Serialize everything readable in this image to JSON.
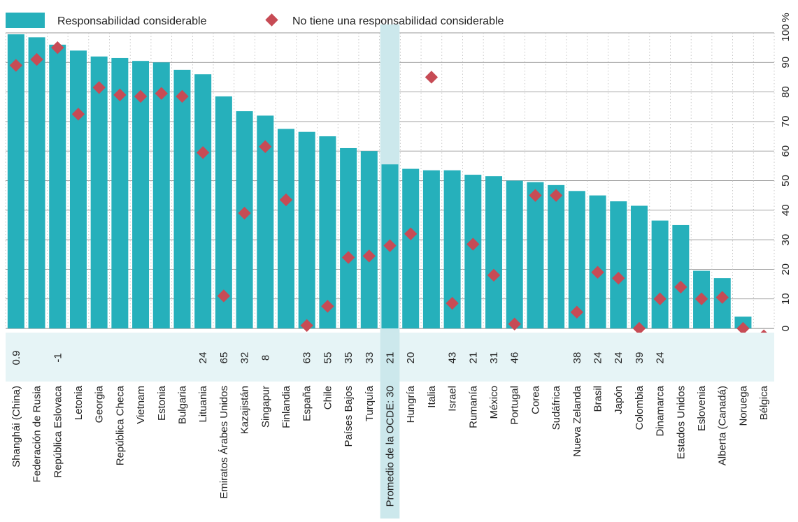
{
  "chart_data": {
    "type": "bar",
    "title": "",
    "xlabel": "",
    "ylabel": "",
    "ylim": [
      0,
      100
    ],
    "yticks": [
      0,
      10,
      20,
      30,
      40,
      50,
      60,
      70,
      80,
      90,
      100
    ],
    "ytick_labels": [
      "0",
      "10",
      "20",
      "30",
      "40",
      "50",
      "60",
      "70",
      "80",
      "90",
      "100"
    ],
    "y_unit_label": "%",
    "grid": true,
    "legend_position": "top",
    "highlight_category": "Promedio de la OCDE: 30",
    "colors": {
      "bar": "#26b0bb",
      "marker": "#c74b55",
      "highlight": "#cce8ec",
      "diff_strip": "#e6f4f6",
      "grid": "#999999"
    },
    "categories": [
      "Shanghái (China)",
      "Federación de Rusia",
      "República Eslovaca",
      "Letonia",
      "Georgia",
      "República Checa",
      "Vietnam",
      "Estonia",
      "Bulgaria",
      "Lituania",
      "Emiratos Árabes Unidos",
      "Kazajistán",
      "Singapur",
      "Finlandia",
      "España",
      "Chile",
      "Países Bajos",
      "Turquía",
      "Promedio de la OCDE: 30",
      "Hungría",
      "Italia",
      "Israel",
      "Rumanía",
      "México",
      "Portugal",
      "Corea",
      "Sudáfrica",
      "Nueva Zelanda",
      "Brasil",
      "Japón",
      "Colombia",
      "Dinamarca",
      "Estados Unidos",
      "Eslovenia",
      "Alberta (Canadá)",
      "Noruega",
      "Bélgica"
    ],
    "series": [
      {
        "name": "Responsabilidad considerable",
        "kind": "bar",
        "values": [
          99.5,
          98.5,
          96,
          94,
          92,
          91.5,
          90.5,
          90,
          87.5,
          86,
          78.5,
          73.5,
          72,
          67.5,
          66.5,
          65,
          61,
          60,
          55.5,
          54,
          53.5,
          53.5,
          52,
          51.5,
          50,
          49.5,
          48.5,
          46.5,
          45,
          43,
          41.5,
          36.5,
          35,
          19.5,
          17,
          4,
          null
        ]
      },
      {
        "name": "No tiene una responsabilidad considerable",
        "kind": "marker",
        "values": [
          89,
          91,
          95,
          72.5,
          81.5,
          79,
          78.5,
          79.5,
          78.5,
          59.5,
          11,
          39,
          61.5,
          43.5,
          1,
          7.5,
          24,
          24.5,
          28,
          32,
          85,
          8.5,
          28.5,
          18,
          1.5,
          45,
          45,
          5.5,
          19,
          17,
          0,
          10,
          14,
          10,
          10.5,
          0,
          -2.5
        ]
      }
    ],
    "difference_labels": [
      "0.9",
      "",
      "-1",
      "",
      "",
      "",
      "",
      "",
      "",
      "24",
      "65",
      "32",
      "8",
      "",
      "63",
      "55",
      "35",
      "33",
      "21",
      "20",
      "",
      "43",
      "21",
      "31",
      "46",
      "",
      "",
      "38",
      "24",
      "24",
      "39",
      "24",
      "",
      "",
      "",
      "",
      ""
    ]
  }
}
